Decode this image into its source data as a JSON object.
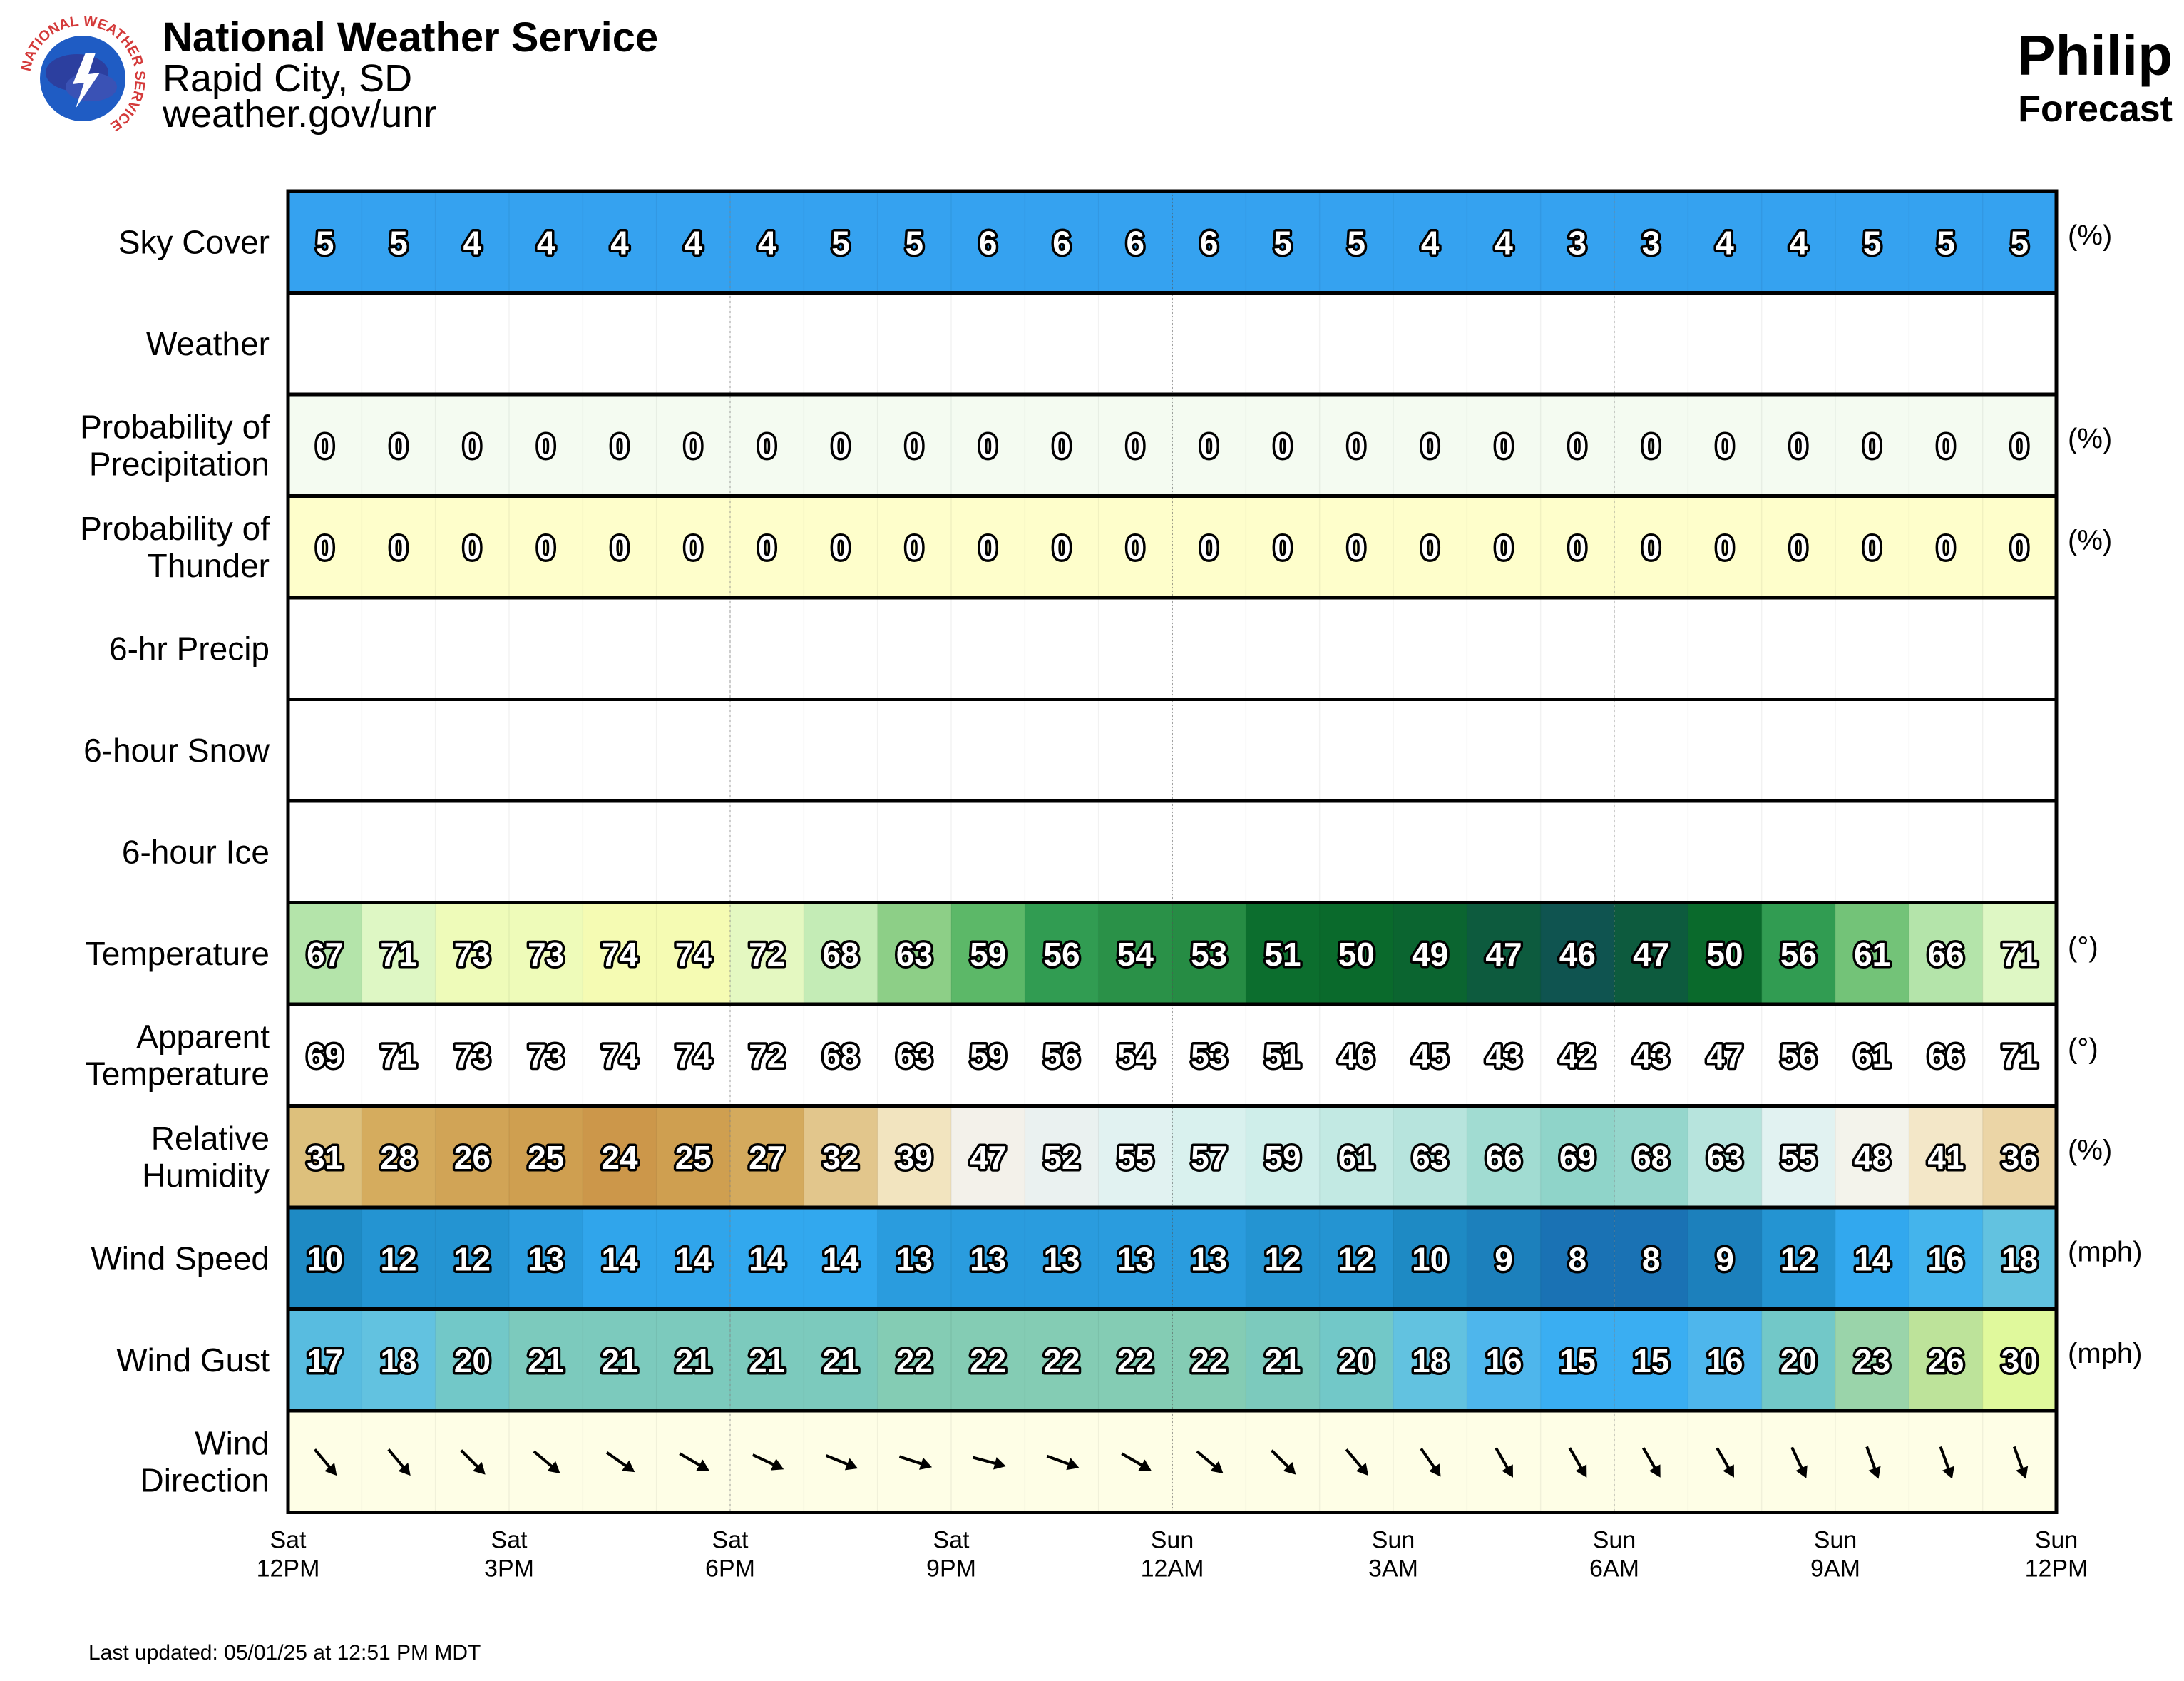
{
  "header": {
    "org": "National Weather Service",
    "office": "Rapid City, SD",
    "url": "weather.gov/unr",
    "location": "Philip",
    "product": "Forecast",
    "logo_ring_text": "NATIONAL WEATHER SERVICE"
  },
  "footer": {
    "updated": "Last updated: 05/01/25 at 12:51 PM MDT"
  },
  "chart_data": {
    "type": "table",
    "hours": 24,
    "x_ticks": [
      {
        "day": "Sat",
        "time": "12PM"
      },
      {
        "day": "Sat",
        "time": "3PM"
      },
      {
        "day": "Sat",
        "time": "6PM"
      },
      {
        "day": "Sat",
        "time": "9PM"
      },
      {
        "day": "Sun",
        "time": "12AM"
      },
      {
        "day": "Sun",
        "time": "3AM"
      },
      {
        "day": "Sun",
        "time": "6AM"
      },
      {
        "day": "Sun",
        "time": "9AM"
      },
      {
        "day": "Sun",
        "time": "12PM"
      }
    ],
    "rows": [
      {
        "key": "sky",
        "label": [
          "Sky Cover"
        ],
        "unit": "(%)",
        "values": [
          5,
          5,
          4,
          4,
          4,
          4,
          4,
          5,
          5,
          6,
          6,
          6,
          6,
          5,
          5,
          4,
          4,
          3,
          3,
          4,
          4,
          5,
          5,
          5
        ],
        "colors": [
          "#35a2f0"
        ]
      },
      {
        "key": "wx",
        "label": [
          "Weather"
        ],
        "unit": "",
        "values": [],
        "colors": [
          "#ffffff"
        ]
      },
      {
        "key": "pop",
        "label": [
          "Probability of",
          "Precipitation"
        ],
        "unit": "(%)",
        "values": [
          0,
          0,
          0,
          0,
          0,
          0,
          0,
          0,
          0,
          0,
          0,
          0,
          0,
          0,
          0,
          0,
          0,
          0,
          0,
          0,
          0,
          0,
          0,
          0
        ],
        "colors": [
          "#f4fbf1"
        ]
      },
      {
        "key": "thunder",
        "label": [
          "Probability of",
          "Thunder"
        ],
        "unit": "(%)",
        "values": [
          0,
          0,
          0,
          0,
          0,
          0,
          0,
          0,
          0,
          0,
          0,
          0,
          0,
          0,
          0,
          0,
          0,
          0,
          0,
          0,
          0,
          0,
          0,
          0
        ],
        "colors": [
          "#fefecb"
        ]
      },
      {
        "key": "qpf",
        "label": [
          "6-hr Precip"
        ],
        "unit": "",
        "values": [],
        "colors": [
          "#ffffff"
        ]
      },
      {
        "key": "snow",
        "label": [
          "6-hour Snow"
        ],
        "unit": "",
        "values": [],
        "colors": [
          "#ffffff"
        ]
      },
      {
        "key": "ice",
        "label": [
          "6-hour Ice"
        ],
        "unit": "",
        "values": [],
        "colors": [
          "#ffffff"
        ]
      },
      {
        "key": "temp",
        "label": [
          "Temperature"
        ],
        "unit": "(°)",
        "values": [
          67,
          71,
          73,
          73,
          74,
          74,
          72,
          68,
          63,
          59,
          56,
          54,
          53,
          51,
          50,
          49,
          47,
          46,
          47,
          50,
          56,
          61,
          66,
          71
        ],
        "colors": [
          "#b4e4aa",
          "#def7c4",
          "#eefbb9",
          "#eefbb9",
          "#f5fbb3",
          "#f5fbb3",
          "#e4f8c1",
          "#c4ecb6",
          "#8dcf87",
          "#5cb868",
          "#319c52",
          "#2a9148",
          "#268c44",
          "#0c6e2e",
          "#0a6a2c",
          "#0b6530",
          "#0d5b3e",
          "#0f5450",
          "#0d5b3e",
          "#0a6a2c",
          "#319c52",
          "#73c378",
          "#b4e4aa",
          "#def7c4"
        ]
      },
      {
        "key": "feels",
        "label": [
          "Apparent",
          "Temperature"
        ],
        "unit": "(°)",
        "values": [
          69,
          71,
          73,
          73,
          74,
          74,
          72,
          68,
          63,
          59,
          56,
          54,
          53,
          51,
          46,
          45,
          43,
          42,
          43,
          47,
          56,
          61,
          66,
          71
        ],
        "colors": [
          "#ffffff"
        ]
      },
      {
        "key": "rh",
        "label": [
          "Relative",
          "Humidity"
        ],
        "unit": "(%)",
        "values": [
          31,
          28,
          26,
          25,
          24,
          25,
          27,
          32,
          39,
          47,
          52,
          55,
          57,
          59,
          61,
          63,
          66,
          69,
          68,
          63,
          55,
          48,
          41,
          36
        ],
        "colors": [
          "#ddc07c",
          "#d5ac5e",
          "#d1a456",
          "#cf9f50",
          "#cc974a",
          "#cf9f50",
          "#d4aa5d",
          "#e2c68c",
          "#f2e4bf",
          "#f3f1ea",
          "#eaf1f0",
          "#e1f2f1",
          "#d9f1ee",
          "#cfeeea",
          "#c2e9e3",
          "#b7e4dd",
          "#a1dcd2",
          "#8fd4c9",
          "#95d6cc",
          "#b7e4dd",
          "#e1f2f1",
          "#f3f3eb",
          "#f3e7c8",
          "#ebd5a6"
        ]
      },
      {
        "key": "wspd",
        "label": [
          "Wind Speed"
        ],
        "unit": "(mph)",
        "values": [
          10,
          12,
          12,
          13,
          14,
          14,
          14,
          14,
          13,
          13,
          13,
          13,
          13,
          12,
          12,
          10,
          9,
          8,
          8,
          9,
          12,
          14,
          16,
          18
        ],
        "colors": [
          "#1e8ac4",
          "#2494d2",
          "#2494d2",
          "#2a9cde",
          "#30a5eb",
          "#30a5eb",
          "#32a8ee",
          "#32a8ee",
          "#2a9cde",
          "#2a9cde",
          "#2a9cde",
          "#2a9cde",
          "#2a9cde",
          "#2494d2",
          "#2494d2",
          "#1e8ac4",
          "#1c80bc",
          "#1a72b4",
          "#1a72b4",
          "#1c80bc",
          "#2494d2",
          "#32a8ee",
          "#44b4ec",
          "#62c2e0"
        ]
      },
      {
        "key": "gust",
        "label": [
          "Wind Gust"
        ],
        "unit": "(mph)",
        "values": [
          17,
          18,
          20,
          21,
          21,
          21,
          21,
          21,
          22,
          22,
          22,
          22,
          22,
          21,
          20,
          18,
          16,
          15,
          15,
          16,
          20,
          23,
          26,
          30
        ],
        "colors": [
          "#58bce0",
          "#62c2e0",
          "#72c8c8",
          "#7ccabd",
          "#7ccabd",
          "#7ccabd",
          "#7ccabd",
          "#7ccabd",
          "#84ccb4",
          "#84ccb4",
          "#84ccb4",
          "#84ccb4",
          "#84ccb4",
          "#7ccabd",
          "#72c8c8",
          "#62c2e0",
          "#4eb6ec",
          "#3aaef2",
          "#3aaef2",
          "#4eb6ec",
          "#72c8c8",
          "#9ad4aa",
          "#bde39a",
          "#e0f99c"
        ]
      },
      {
        "key": "wdir",
        "label": [
          "Wind",
          "Direction"
        ],
        "unit": "",
        "values": [
          140,
          140,
          135,
          130,
          125,
          120,
          115,
          112,
          108,
          105,
          110,
          120,
          130,
          135,
          140,
          145,
          150,
          150,
          150,
          150,
          155,
          160,
          160,
          160
        ],
        "colors": [
          "#fefee6"
        ]
      }
    ]
  }
}
